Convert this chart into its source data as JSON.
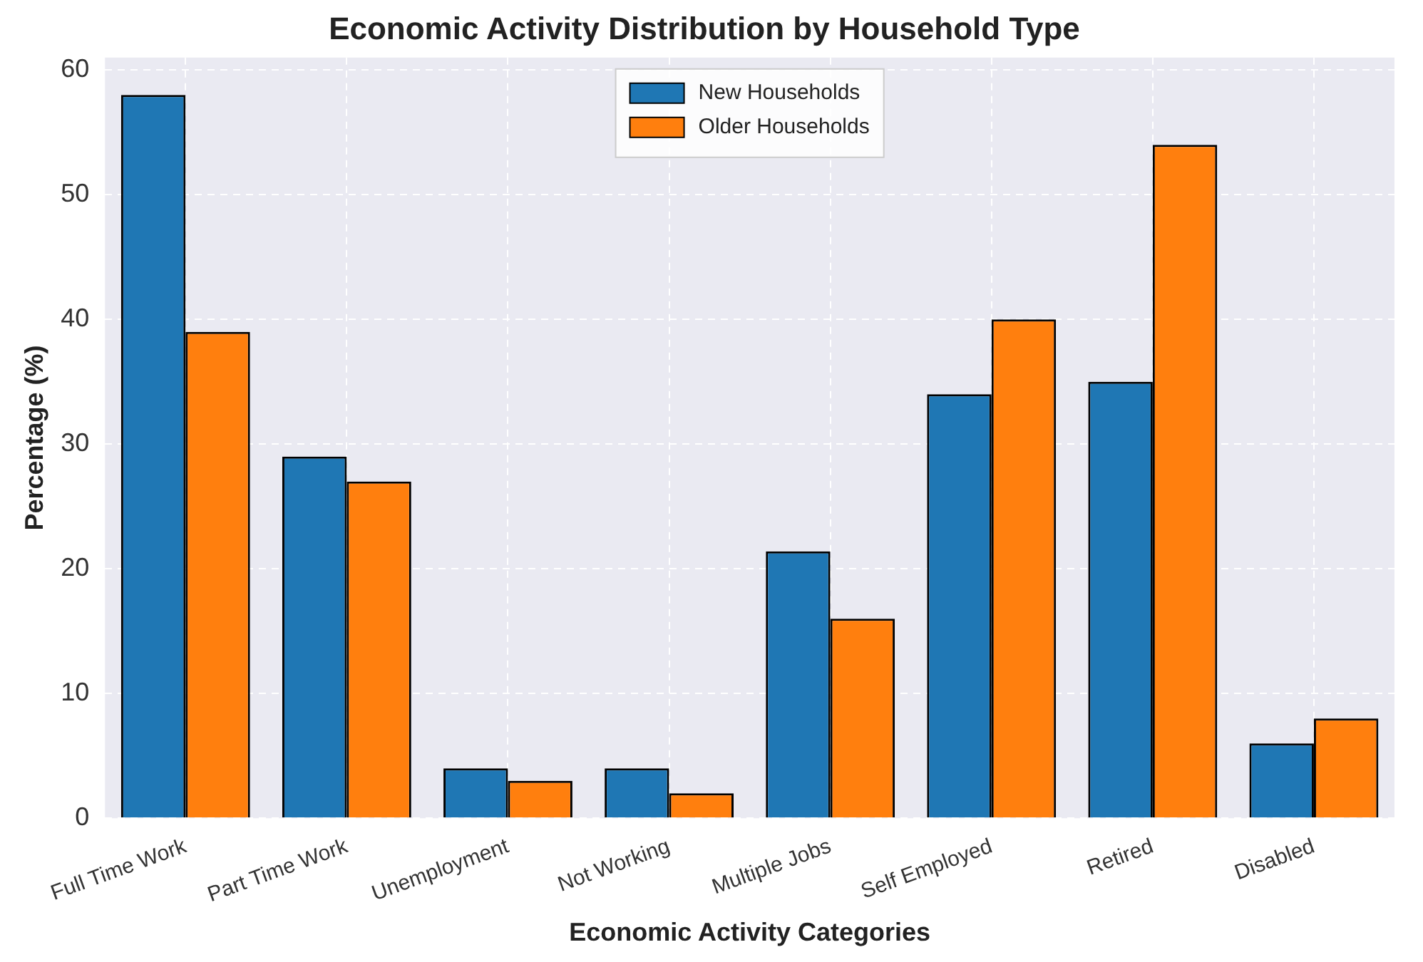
{
  "chart_data": {
    "type": "bar",
    "title": "Economic Activity Distribution by Household Type",
    "xlabel": "Economic Activity Categories",
    "ylabel": "Percentage (%)",
    "categories": [
      "Full Time Work",
      "Part Time Work",
      "Unemployment",
      "Not Working",
      "Multiple Jobs",
      "Self Employed",
      "Retired",
      "Disabled"
    ],
    "series": [
      {
        "name": "New Households",
        "color": "#1f77b4",
        "values": [
          58,
          29,
          4,
          4,
          21.4,
          34,
          35,
          6
        ]
      },
      {
        "name": "Older Households",
        "color": "#ff7f0e",
        "values": [
          39,
          27,
          3,
          2,
          16,
          40,
          54,
          8
        ]
      }
    ],
    "ylim": [
      0,
      61
    ],
    "yticks": [
      0,
      10,
      20,
      30,
      40,
      50,
      60
    ],
    "grid": true,
    "legend": "top"
  }
}
